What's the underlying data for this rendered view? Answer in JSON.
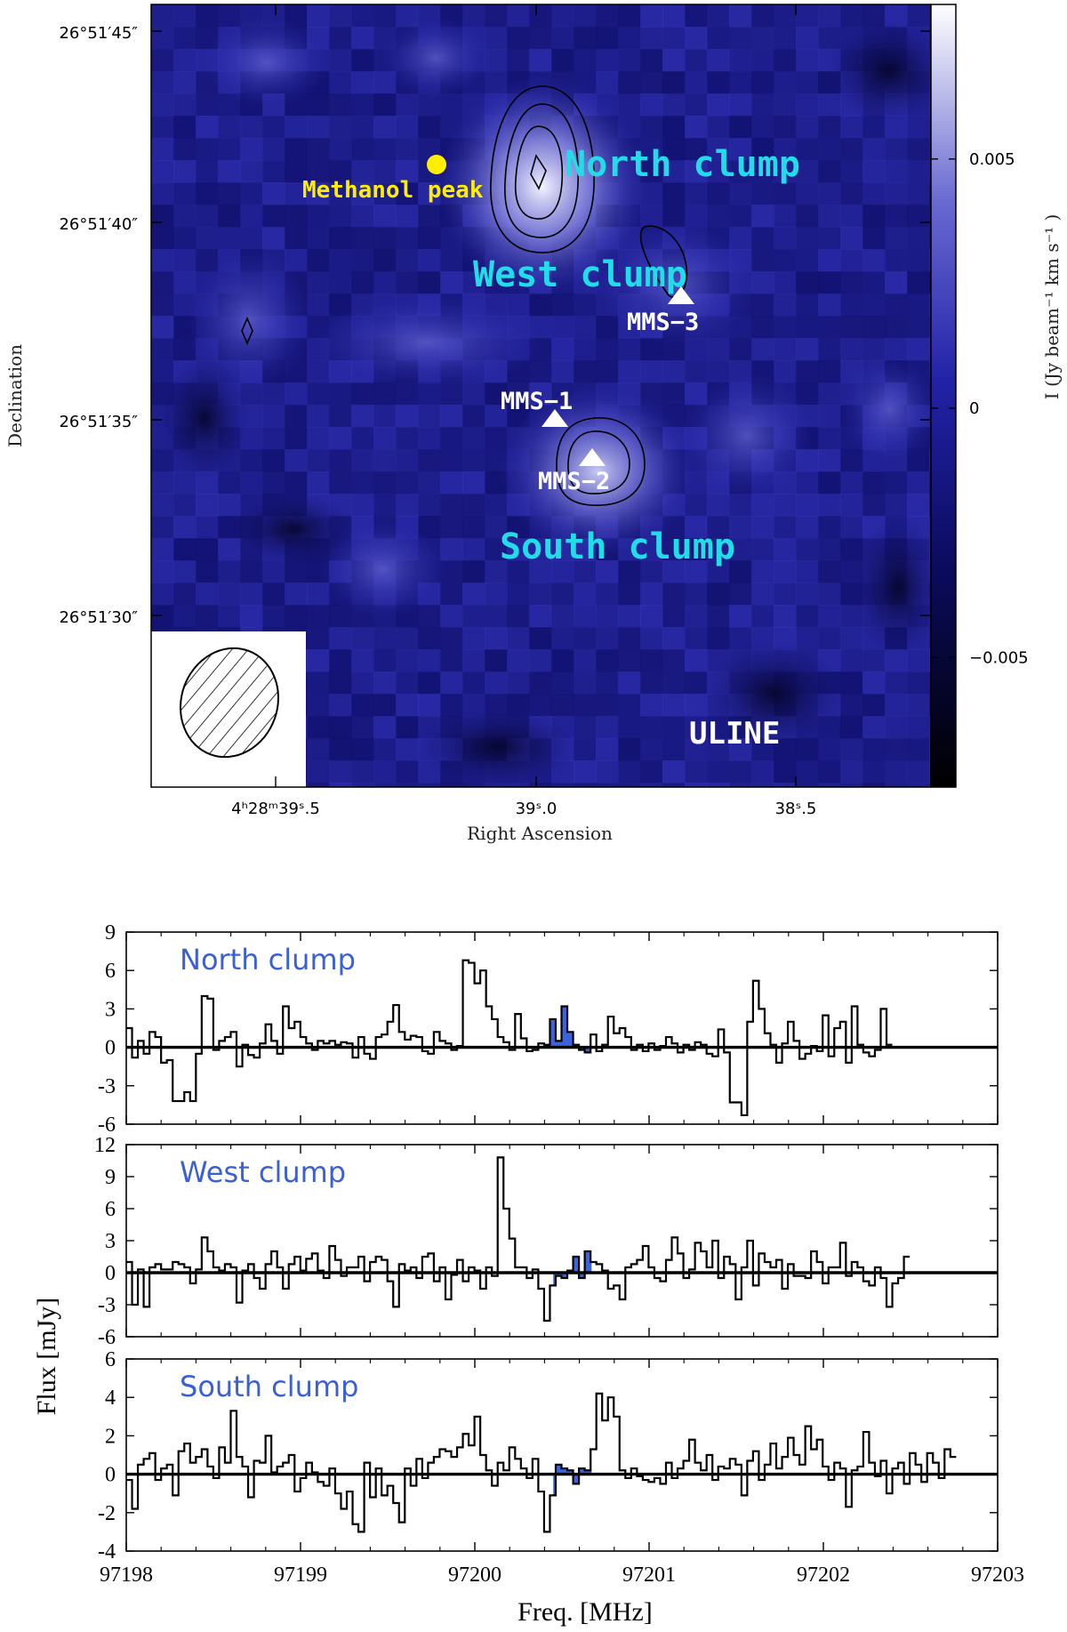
{
  "map": {
    "ylabel": "Declination",
    "xlabel": "Right Ascension",
    "colorbar_label": "I (Jy beam⁻¹ km s⁻¹ )",
    "dec_ticks": [
      "26°51′45″",
      "26°51′40″",
      "26°51′35″",
      "26°51′30″"
    ],
    "ra_ticks": [
      "4ʰ28ᵐ39ˢ.5",
      "39ˢ.0",
      "38ˢ.5"
    ],
    "colorbar_ticks": [
      {
        "value": 0.005,
        "label": "0.005"
      },
      {
        "value": 0,
        "label": "0"
      },
      {
        "value": -0.005,
        "label": "−0.005"
      }
    ],
    "colorbar_range": [
      -0.0076,
      0.0081
    ],
    "labels": {
      "north": "North clump",
      "west": "West clump",
      "south": "South clump",
      "methanol": "Methanol peak",
      "mms1": "MMS−1",
      "mms2": "MMS−2",
      "mms3": "MMS−3",
      "uline": "ULINE"
    },
    "colors": {
      "cyan": "#22dde8",
      "yellow": "#ffee00",
      "white": "#ffffff"
    }
  },
  "chart_data": [
    {
      "type": "line",
      "title": "North clump",
      "xlabel": "Freq. [MHz]",
      "ylabel": "Flux [mJy]",
      "xlim": [
        97198,
        97203
      ],
      "ylim": [
        -6,
        9
      ],
      "yticks": [
        9,
        6,
        3,
        0,
        -3,
        -6
      ],
      "x_start": 97198.0,
      "x_step": 0.0333,
      "shaded_range": [
        97200.4,
        97200.67
      ],
      "values": [
        1.5,
        -0.8,
        0.5,
        -0.5,
        1.2,
        0.8,
        -1.2,
        -1.0,
        -4.2,
        -4.2,
        -3.5,
        -4.2,
        -0.5,
        4.0,
        3.8,
        -0.2,
        0.5,
        0.8,
        1.2,
        -1.5,
        0.2,
        -0.6,
        -0.8,
        0.3,
        1.8,
        0.5,
        -0.5,
        3.2,
        1.5,
        2.0,
        0.8,
        0.3,
        -0.2,
        0.5,
        0.3,
        0.5,
        0.2,
        0.4,
        0.3,
        -0.8,
        0.8,
        -0.5,
        -0.9,
        0.8,
        1.0,
        2.0,
        3.3,
        1.2,
        0.6,
        0.9,
        0.8,
        -0.3,
        -0.5,
        1.2,
        0.5,
        0.3,
        -0.2,
        0.1,
        6.8,
        6.6,
        5.0,
        6.0,
        3.2,
        2.2,
        0.8,
        0.4,
        -0.2,
        2.6,
        0.7,
        -0.3,
        -0.2,
        0.3,
        0.2,
        2.2,
        0.5,
        3.2,
        1.2,
        0.2,
        -0.2,
        -0.4,
        1.0,
        -0.3,
        0.2,
        2.4,
        1.1,
        1.5,
        0.8,
        -0.2,
        0.2,
        -0.3,
        0.3,
        -0.2,
        0.1,
        0.8,
        0.3,
        -0.4,
        0.2,
        -0.2,
        0.4,
        0.2,
        -0.5,
        -0.7,
        1.4,
        -0.4,
        -4.3,
        -4.3,
        -5.3,
        2.0,
        5.2,
        3.0,
        1.1,
        0.2,
        -1.2,
        0.3,
        2.0,
        0.5,
        -0.9,
        -0.5,
        0.1,
        -0.3,
        2.5,
        -0.7,
        1.5,
        2.0,
        -1.2,
        3.2,
        0.2,
        -0.4,
        -0.7,
        -0.2,
        3.0,
        0.2
      ],
      "legend": []
    },
    {
      "type": "line",
      "title": "West clump",
      "xlabel": "Freq. [MHz]",
      "ylabel": "Flux [mJy]",
      "xlim": [
        97198,
        97203
      ],
      "ylim": [
        -6,
        12
      ],
      "yticks": [
        12,
        9,
        6,
        3,
        0,
        -3,
        -6
      ],
      "x_start": 97198.0,
      "x_step": 0.0333,
      "shaded_range": [
        97200.45,
        97200.67
      ],
      "values": [
        1.0,
        -3.0,
        0.3,
        -3.2,
        0.5,
        0.8,
        0.3,
        0.3,
        1.0,
        0.8,
        0.5,
        -1.0,
        0.3,
        3.3,
        2.0,
        0.5,
        0.2,
        0.8,
        0.5,
        -2.8,
        0.2,
        0.8,
        -0.5,
        -1.5,
        0.8,
        2.0,
        0.5,
        -1.5,
        0.8,
        1.5,
        0.2,
        1.3,
        1.8,
        0.2,
        -0.5,
        2.5,
        1.2,
        -0.3,
        0.5,
        0.5,
        1.5,
        -0.8,
        1.0,
        1.5,
        1.2,
        -0.8,
        -3.2,
        0.8,
        0.2,
        0.5,
        -0.5,
        1.5,
        1.8,
        -0.8,
        0.5,
        -2.5,
        -0.2,
        1.2,
        -0.8,
        0.5,
        0.2,
        -1.5,
        0.5,
        -0.3,
        10.8,
        6.0,
        3.2,
        0.5,
        0.5,
        -0.5,
        0.3,
        -1.5,
        -4.5,
        -1.2,
        -0.3,
        -0.5,
        0.2,
        1.5,
        -0.5,
        2.0,
        1.0,
        0.8,
        0.2,
        -1.5,
        -1.2,
        -2.5,
        0.5,
        0.8,
        1.2,
        2.5,
        0.5,
        -0.5,
        -0.8,
        1.2,
        3.3,
        1.8,
        -0.5,
        0.3,
        2.8,
        2.0,
        0.5,
        3.0,
        -0.5,
        1.5,
        0.8,
        -2.5,
        0.5,
        3.0,
        -1.2,
        1.8,
        1.0,
        0.5,
        1.2,
        -1.5,
        0.8,
        -0.3,
        -0.3,
        -0.5,
        2.0,
        1.0,
        -1.0,
        0.5,
        0.5,
        2.8,
        -0.3,
        1.0,
        0.5,
        -0.8,
        -1.2,
        0.5,
        -0.5,
        -3.2,
        -1.0,
        -0.5,
        1.5
      ],
      "legend": []
    },
    {
      "type": "line",
      "title": "South clump",
      "xlabel": "Freq. [MHz]",
      "ylabel": "Flux [mJy]",
      "xlim": [
        97198,
        97203
      ],
      "ylim": [
        -4,
        6
      ],
      "yticks": [
        6,
        4,
        2,
        0,
        -2,
        -4
      ],
      "x_start": 97198.0,
      "x_step": 0.0333,
      "shaded_range": [
        97200.45,
        97200.67
      ],
      "values": [
        -0.3,
        -1.8,
        0.5,
        0.8,
        1.1,
        -0.3,
        0.3,
        0.5,
        -1.1,
        1.2,
        1.6,
        0.6,
        0.9,
        1.3,
        0.4,
        -0.2,
        1.4,
        0.6,
        3.3,
        0.9,
        0.4,
        -1.2,
        0.7,
        0.6,
        2.0,
        0.1,
        0.4,
        0.6,
        1.0,
        -0.9,
        -0.2,
        0.6,
        0.1,
        -0.4,
        -0.6,
        0.3,
        -1.0,
        -1.8,
        -0.9,
        -2.6,
        -3.0,
        0.6,
        -1.2,
        0.3,
        -1.1,
        -0.6,
        -1.5,
        -2.5,
        0.3,
        -0.6,
        0.8,
        -0.2,
        0.6,
        0.9,
        1.3,
        1.2,
        0.9,
        1.4,
        2.1,
        1.5,
        3.0,
        1.0,
        0.2,
        -0.6,
        0.6,
        0.2,
        1.4,
        0.8,
        0.3,
        -0.2,
        0.8,
        -0.9,
        -3.0,
        -1.1,
        0.5,
        0.3,
        0.2,
        -0.5,
        0.3,
        0.2,
        1.3,
        4.2,
        2.8,
        4.0,
        3.0,
        0.2,
        -0.2,
        0.3,
        -0.1,
        -0.3,
        -0.4,
        -0.2,
        -0.5,
        0.6,
        -0.2,
        0.3,
        0.7,
        1.8,
        0.6,
        0.2,
        1.0,
        -0.3,
        0.4,
        0.3,
        0.8,
        0.5,
        -1.1,
        0.7,
        1.2,
        -0.3,
        0.5,
        1.6,
        0.3,
        0.9,
        1.9,
        1.0,
        0.5,
        2.5,
        1.3,
        1.8,
        0.4,
        -0.3,
        0.6,
        0.3,
        -1.7,
        0.2,
        0.4,
        2.2,
        0.6,
        -0.1,
        0.7,
        -1.0,
        0.3,
        0.6,
        -0.5,
        1.1,
        0.5,
        -0.4,
        1.1,
        0.6,
        -0.2,
        1.3,
        0.9
      ],
      "legend": []
    }
  ],
  "spectra_axes": {
    "xticks": [
      97198,
      97199,
      97200,
      97201,
      97202,
      97203
    ],
    "xlabel": "Freq. [MHz]",
    "ylabel": "Flux [mJy]"
  },
  "colors": {
    "fill": "#3b63dd",
    "title": "#3b5fd6",
    "line": "#000000"
  }
}
